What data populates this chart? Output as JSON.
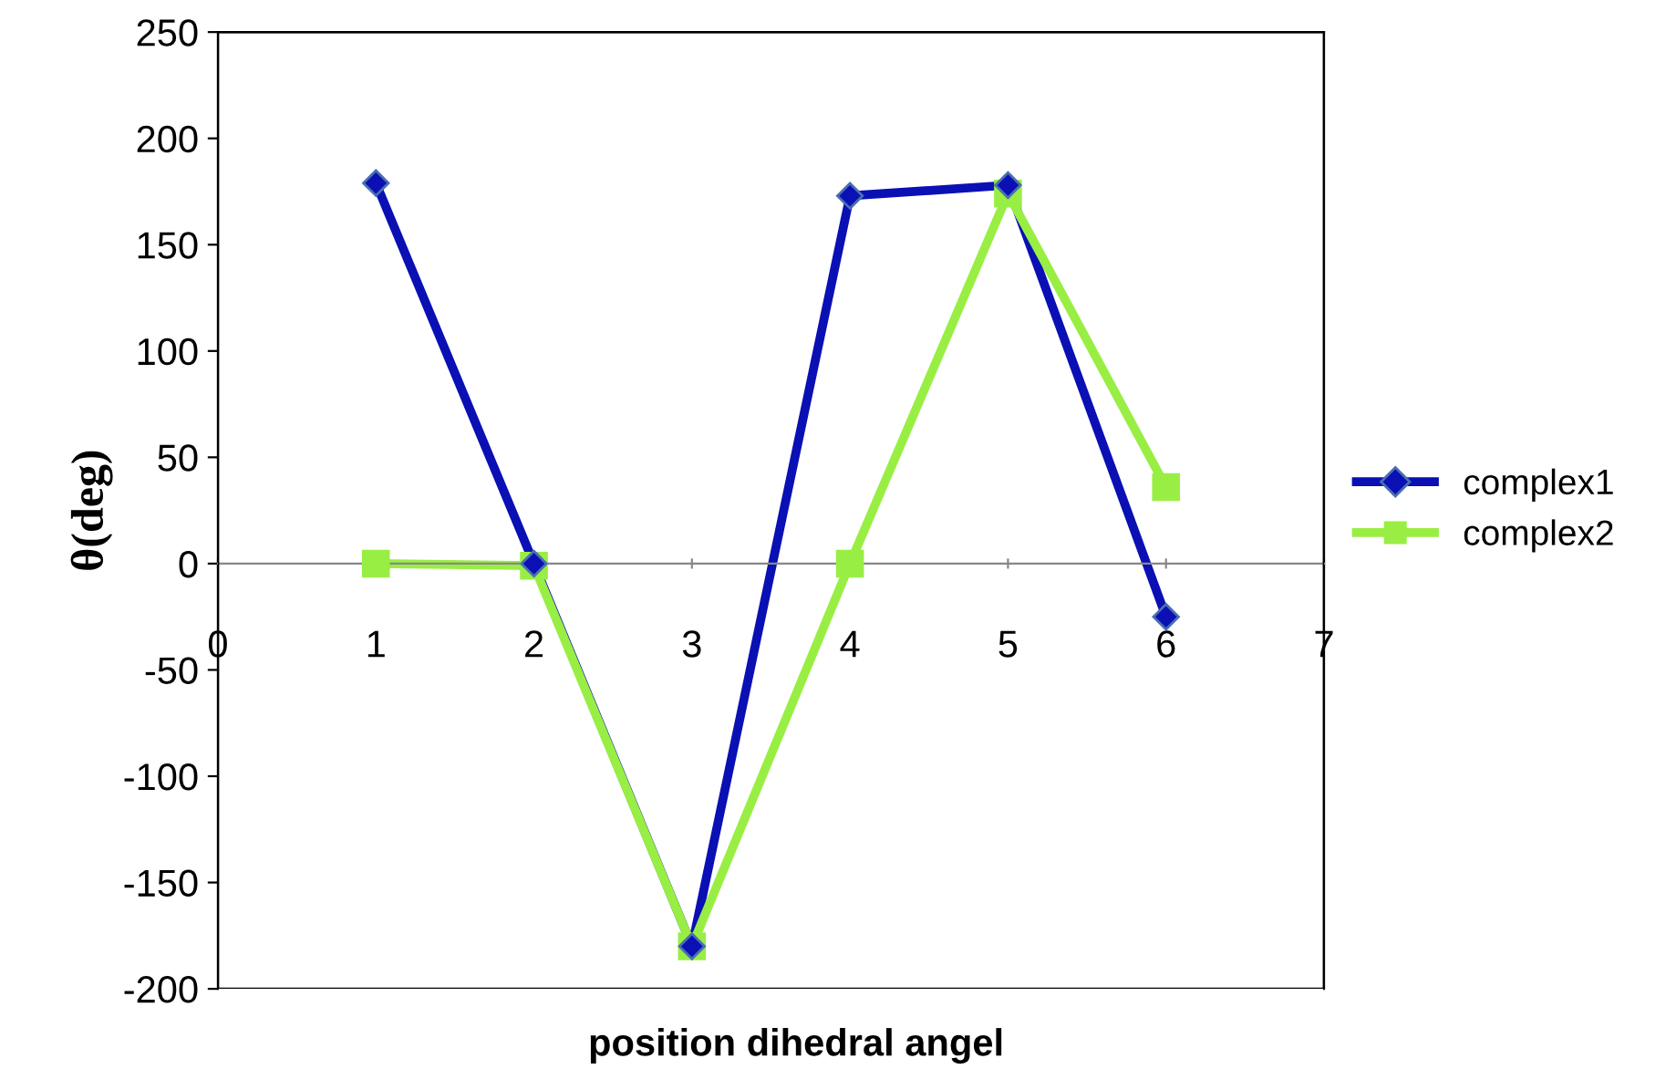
{
  "chart_data": {
    "type": "line",
    "xlabel": "position dihedral angel",
    "ylabel": "θ(deg)",
    "x": [
      1,
      2,
      3,
      4,
      5,
      6
    ],
    "series": [
      {
        "name": "complex1",
        "color": "#0a10b4",
        "marker": "diamond",
        "values": [
          179,
          0,
          -180,
          173,
          178,
          -25
        ]
      },
      {
        "name": "complex2",
        "color": "#99ee44",
        "marker": "square",
        "values": [
          0,
          -1,
          -180,
          0,
          174,
          36
        ]
      }
    ],
    "xlim": [
      0,
      7
    ],
    "xticks": [
      0,
      1,
      2,
      3,
      4,
      5,
      6,
      7
    ],
    "ylim": [
      -200,
      250
    ],
    "yticks": [
      -200,
      -150,
      -100,
      -50,
      0,
      50,
      100,
      150,
      200,
      250
    ],
    "grid": false,
    "legend": "right"
  }
}
